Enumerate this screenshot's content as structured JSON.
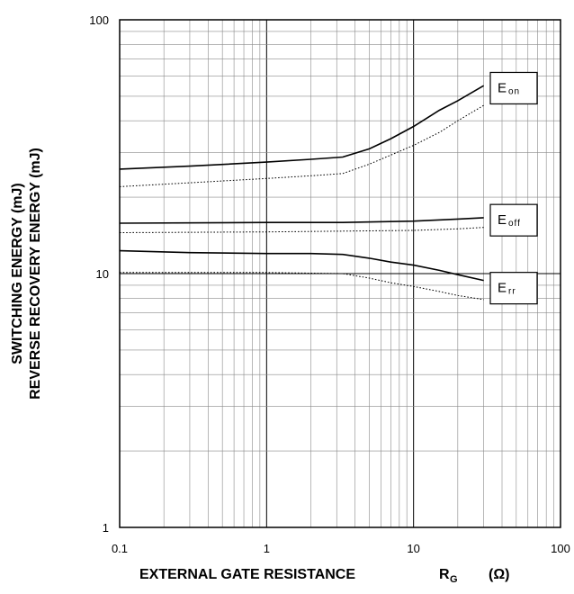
{
  "chart_data": {
    "type": "line",
    "x_scale": "log",
    "y_scale": "log",
    "xlim": [
      0.1,
      100
    ],
    "ylim": [
      1,
      100
    ],
    "grid": true,
    "xlabel": {
      "main": "EXTERNAL GATE RESISTANCE",
      "symbol": "R",
      "symbol_sub": "G",
      "unit": "(Ω)"
    },
    "ylabel": {
      "line1": "SWITCHING ENERGY   (mJ)",
      "line2": "REVERSE RECOVERY ENERGY   (mJ)"
    },
    "xticks": [
      {
        "value": 0.1,
        "label": "0.1"
      },
      {
        "value": 1,
        "label": "1"
      },
      {
        "value": 10,
        "label": "10"
      },
      {
        "value": 100,
        "label": "100"
      }
    ],
    "yticks": [
      {
        "value": 1,
        "label": "1"
      },
      {
        "value": 10,
        "label": "10"
      },
      {
        "value": 100,
        "label": "100"
      }
    ],
    "series": [
      {
        "name": "E_on",
        "main": "E",
        "sub": "on",
        "label_y": 54,
        "style": "solid",
        "points": [
          [
            0.1,
            25.8
          ],
          [
            0.3,
            26.5
          ],
          [
            1,
            27.5
          ],
          [
            2,
            28.2
          ],
          [
            3.3,
            28.8
          ],
          [
            5,
            31
          ],
          [
            7,
            34
          ],
          [
            10,
            38
          ],
          [
            15,
            44
          ],
          [
            20,
            48
          ],
          [
            30,
            55
          ]
        ]
      },
      {
        "name": "E_on",
        "style": "dotted",
        "points": [
          [
            0.1,
            22
          ],
          [
            0.3,
            22.8
          ],
          [
            1,
            23.7
          ],
          [
            2,
            24.3
          ],
          [
            3.3,
            24.8
          ],
          [
            5,
            27
          ],
          [
            7,
            29.3
          ],
          [
            10,
            32
          ],
          [
            15,
            36
          ],
          [
            20,
            40
          ],
          [
            30,
            46
          ]
        ]
      },
      {
        "name": "E_off",
        "main": "E",
        "sub": "off",
        "label_y": 16.3,
        "style": "solid",
        "points": [
          [
            0.1,
            15.8
          ],
          [
            1,
            15.9
          ],
          [
            3.3,
            15.9
          ],
          [
            10,
            16.1
          ],
          [
            20,
            16.4
          ],
          [
            30,
            16.6
          ]
        ]
      },
      {
        "name": "E_off",
        "style": "dotted",
        "points": [
          [
            0.1,
            14.5
          ],
          [
            1,
            14.6
          ],
          [
            3.3,
            14.7
          ],
          [
            10,
            14.8
          ],
          [
            20,
            15
          ],
          [
            30,
            15.2
          ]
        ]
      },
      {
        "name": "E_rr",
        "main": "E",
        "sub": "rr",
        "label_y": 8.8,
        "style": "solid",
        "points": [
          [
            0.1,
            12.3
          ],
          [
            0.3,
            12.1
          ],
          [
            1,
            12
          ],
          [
            2,
            12
          ],
          [
            3.3,
            11.9
          ],
          [
            5,
            11.5
          ],
          [
            7,
            11.1
          ],
          [
            10,
            10.8
          ],
          [
            15,
            10.3
          ],
          [
            20,
            9.9
          ],
          [
            30,
            9.4
          ]
        ]
      },
      {
        "name": "E_rr",
        "style": "dotted",
        "points": [
          [
            0.1,
            10.1
          ],
          [
            1,
            10.1
          ],
          [
            3.3,
            10
          ],
          [
            5,
            9.6
          ],
          [
            7,
            9.2
          ],
          [
            10,
            8.9
          ],
          [
            15,
            8.5
          ],
          [
            20,
            8.2
          ],
          [
            30,
            7.9
          ]
        ]
      }
    ]
  }
}
